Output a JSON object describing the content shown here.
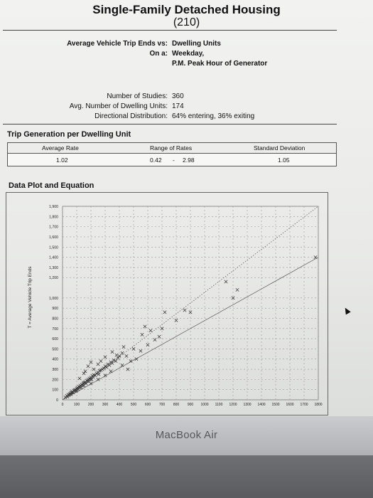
{
  "header": {
    "title": "Single-Family Detached Housing",
    "code": "(210)"
  },
  "info": {
    "avg_label": "Average Vehicle Trip Ends vs:",
    "avg_value": "Dwelling Units",
    "on_label": "On a:",
    "on_value_1": "Weekday,",
    "on_value_2": "P.M. Peak Hour of Generator",
    "studies_label": "Number of Studies:",
    "studies_value": "360",
    "avg_units_label": "Avg. Number of Dwelling Units:",
    "avg_units_value": "174",
    "dir_label": "Directional Distribution:",
    "dir_value": "64% entering, 36% exiting"
  },
  "trip_generation": {
    "title": "Trip Generation per Dwelling Unit",
    "headers": [
      "Average Rate",
      "Range of Rates",
      "Standard Deviation"
    ],
    "average_rate": "1.02",
    "range_low": "0.42",
    "range_sep": "-",
    "range_high": "2.98",
    "std_dev": "1.05"
  },
  "plot_section": {
    "title": "Data Plot and Equation"
  },
  "device": {
    "brand": "MacBook Air"
  },
  "chart_data": {
    "type": "scatter",
    "title": "",
    "xlabel": "",
    "ylabel": "T = Average Vehicle Trip Ends",
    "xlim": [
      0,
      1800
    ],
    "ylim": [
      0,
      1900
    ],
    "x_ticks": [
      0,
      100,
      200,
      300,
      400,
      500,
      600,
      700,
      800,
      900,
      1000,
      1100,
      1200,
      1300,
      1400,
      1500,
      1600,
      1700,
      1800
    ],
    "y_ticks": [
      0,
      100,
      200,
      300,
      400,
      500,
      600,
      700,
      800,
      900,
      1000,
      1200,
      1300,
      1400,
      1500,
      1600,
      1700,
      1800,
      1900
    ],
    "grid": true,
    "series": [
      {
        "marker": "x",
        "points": [
          [
            20,
            25
          ],
          [
            30,
            40
          ],
          [
            35,
            30
          ],
          [
            40,
            50
          ],
          [
            45,
            45
          ],
          [
            50,
            55
          ],
          [
            55,
            60
          ],
          [
            60,
            70
          ],
          [
            60,
            55
          ],
          [
            65,
            75
          ],
          [
            70,
            80
          ],
          [
            75,
            70
          ],
          [
            80,
            90
          ],
          [
            85,
            95
          ],
          [
            90,
            100
          ],
          [
            95,
            85
          ],
          [
            100,
            110
          ],
          [
            100,
            95
          ],
          [
            105,
            120
          ],
          [
            110,
            105
          ],
          [
            115,
            130
          ],
          [
            120,
            125
          ],
          [
            125,
            140
          ],
          [
            130,
            120
          ],
          [
            135,
            150
          ],
          [
            140,
            145
          ],
          [
            145,
            160
          ],
          [
            150,
            165
          ],
          [
            150,
            140
          ],
          [
            155,
            170
          ],
          [
            160,
            175
          ],
          [
            165,
            160
          ],
          [
            170,
            190
          ],
          [
            175,
            185
          ],
          [
            180,
            200
          ],
          [
            185,
            180
          ],
          [
            190,
            210
          ],
          [
            195,
            205
          ],
          [
            200,
            220
          ],
          [
            205,
            200
          ],
          [
            210,
            235
          ],
          [
            215,
            225
          ],
          [
            220,
            245
          ],
          [
            230,
            240
          ],
          [
            240,
            260
          ],
          [
            250,
            270
          ],
          [
            255,
            250
          ],
          [
            260,
            285
          ],
          [
            270,
            290
          ],
          [
            280,
            300
          ],
          [
            290,
            310
          ],
          [
            300,
            330
          ],
          [
            310,
            320
          ],
          [
            320,
            350
          ],
          [
            330,
            340
          ],
          [
            340,
            370
          ],
          [
            350,
            360
          ],
          [
            360,
            390
          ],
          [
            375,
            380
          ],
          [
            390,
            410
          ],
          [
            400,
            430
          ],
          [
            150,
            260
          ],
          [
            180,
            330
          ],
          [
            200,
            370
          ],
          [
            220,
            300
          ],
          [
            250,
            350
          ],
          [
            120,
            210
          ],
          [
            160,
            280
          ],
          [
            270,
            380
          ],
          [
            300,
            420
          ],
          [
            350,
            470
          ],
          [
            380,
            440
          ],
          [
            420,
            460
          ],
          [
            450,
            430
          ],
          [
            480,
            380
          ],
          [
            500,
            500
          ],
          [
            520,
            400
          ],
          [
            560,
            640
          ],
          [
            600,
            540
          ],
          [
            620,
            680
          ],
          [
            650,
            590
          ],
          [
            580,
            720
          ],
          [
            700,
            700
          ],
          [
            420,
            340
          ],
          [
            460,
            300
          ],
          [
            300,
            240
          ],
          [
            340,
            280
          ],
          [
            250,
            200
          ],
          [
            200,
            160
          ],
          [
            430,
            520
          ],
          [
            550,
            480
          ],
          [
            680,
            620
          ],
          [
            720,
            860
          ],
          [
            800,
            780
          ],
          [
            860,
            880
          ],
          [
            900,
            860
          ],
          [
            1150,
            1160
          ],
          [
            1200,
            1000
          ],
          [
            1230,
            1080
          ],
          [
            1780,
            1400
          ]
        ]
      }
    ],
    "lines": [
      {
        "style": "solid",
        "from": [
          0,
          0
        ],
        "to": [
          1800,
          1400
        ]
      },
      {
        "style": "dotted",
        "from": [
          0,
          0
        ],
        "to": [
          1800,
          1900
        ]
      }
    ]
  }
}
